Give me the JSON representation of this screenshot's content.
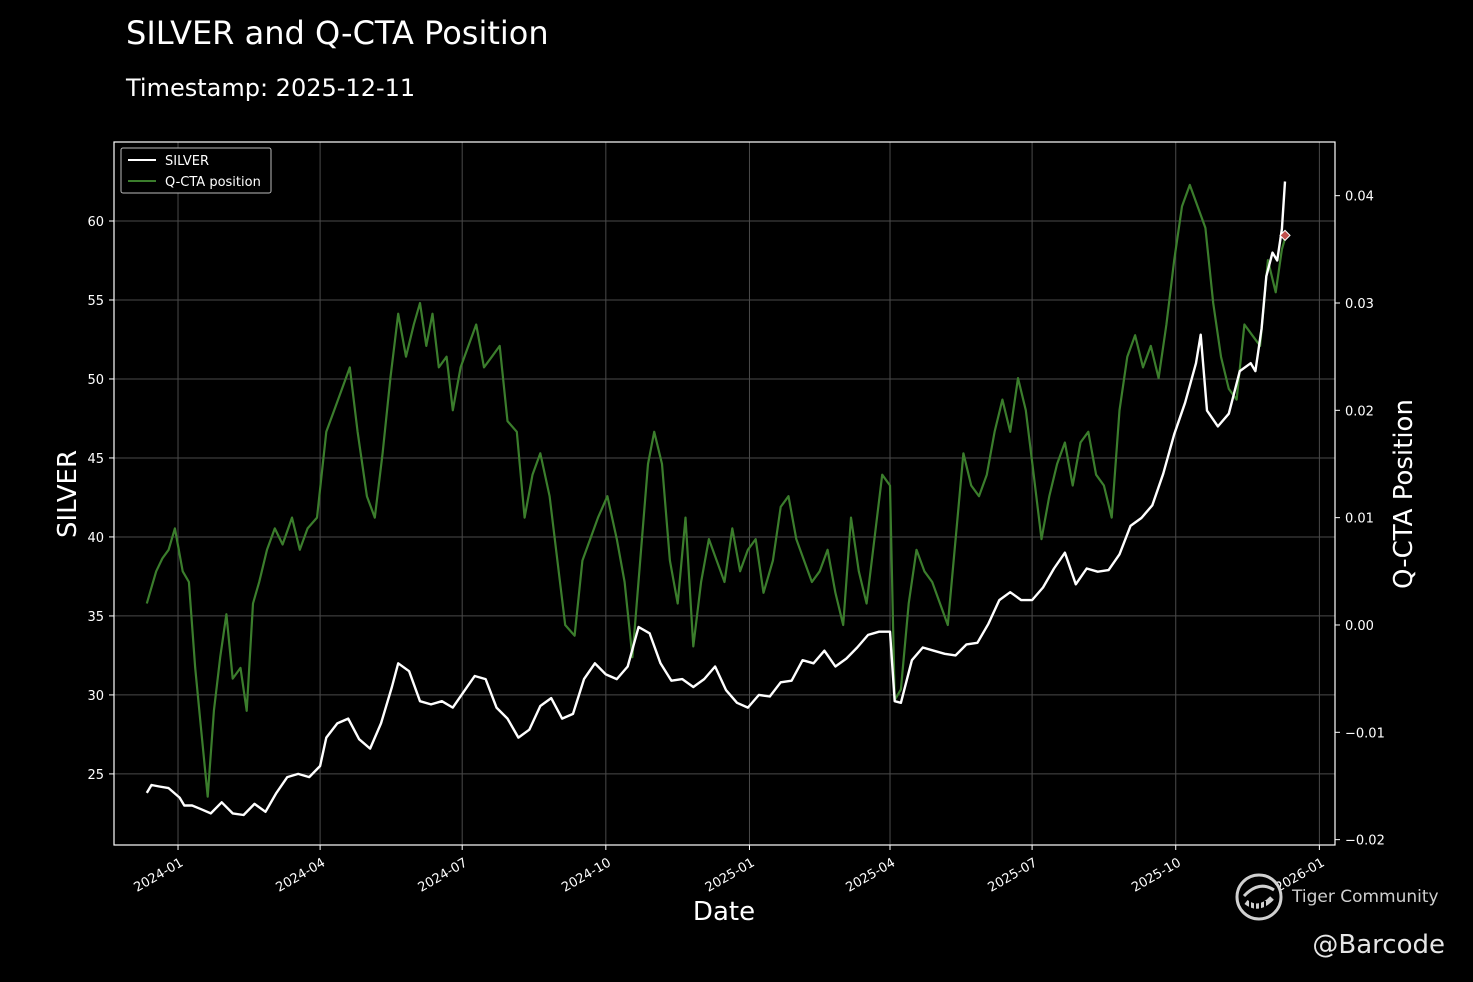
{
  "title": "SILVER and Q-CTA Position",
  "subtitle": "Timestamp: 2025-12-11",
  "watermark": {
    "logo_icon": "tiger-logo-icon",
    "brand": "Tiger Community",
    "handle": "@Barcode"
  },
  "colors": {
    "silver": "#ffffff",
    "cta": "#3b7d2c",
    "marker": "#c0504d",
    "background": "#000000",
    "grid": "#4a4a4a"
  },
  "chart_data": {
    "type": "line",
    "title": "SILVER and Q-CTA Position",
    "xlabel": "Date",
    "ylabel": "SILVER",
    "y2label": "Q-CTA Position",
    "xlim": [
      "2023-11-21",
      "2026-01-11"
    ],
    "ylim": [
      20.5,
      65.0
    ],
    "y2lim": [
      -0.0205,
      0.045
    ],
    "x_ticks": [
      "2024-01",
      "2024-04",
      "2024-07",
      "2024-10",
      "2025-01",
      "2025-04",
      "2025-07",
      "2025-10",
      "2026-01"
    ],
    "y_ticks": [
      25,
      30,
      35,
      40,
      45,
      50,
      55,
      60
    ],
    "y2_ticks": [
      -0.02,
      -0.01,
      0.0,
      0.01,
      0.02,
      0.03,
      0.04
    ],
    "y2_tick_labels": [
      "−0.02",
      "−0.01",
      "0.00",
      "0.01",
      "0.02",
      "0.03",
      "0.04"
    ],
    "grid": true,
    "legend": "top-left",
    "series": [
      {
        "name": "SILVER",
        "axis": "left",
        "points": [
          [
            "2023-12-12",
            23.8
          ],
          [
            "2023-12-15",
            24.3
          ],
          [
            "2023-12-20",
            24.2
          ],
          [
            "2023-12-26",
            24.1
          ],
          [
            "2024-01-02",
            23.5
          ],
          [
            "2024-01-05",
            23.0
          ],
          [
            "2024-01-10",
            23.0
          ],
          [
            "2024-01-15",
            22.8
          ],
          [
            "2024-01-22",
            22.5
          ],
          [
            "2024-01-29",
            23.2
          ],
          [
            "2024-02-05",
            22.5
          ],
          [
            "2024-02-12",
            22.4
          ],
          [
            "2024-02-19",
            23.1
          ],
          [
            "2024-02-26",
            22.6
          ],
          [
            "2024-03-04",
            23.8
          ],
          [
            "2024-03-11",
            24.8
          ],
          [
            "2024-03-18",
            25.0
          ],
          [
            "2024-03-25",
            24.8
          ],
          [
            "2024-04-01",
            25.5
          ],
          [
            "2024-04-05",
            27.3
          ],
          [
            "2024-04-12",
            28.2
          ],
          [
            "2024-04-19",
            28.5
          ],
          [
            "2024-04-26",
            27.2
          ],
          [
            "2024-05-03",
            26.6
          ],
          [
            "2024-05-10",
            28.2
          ],
          [
            "2024-05-17",
            30.5
          ],
          [
            "2024-05-21",
            32.0
          ],
          [
            "2024-05-28",
            31.5
          ],
          [
            "2024-06-04",
            29.6
          ],
          [
            "2024-06-11",
            29.4
          ],
          [
            "2024-06-18",
            29.6
          ],
          [
            "2024-06-25",
            29.2
          ],
          [
            "2024-07-02",
            30.2
          ],
          [
            "2024-07-09",
            31.2
          ],
          [
            "2024-07-16",
            31.0
          ],
          [
            "2024-07-23",
            29.2
          ],
          [
            "2024-07-30",
            28.5
          ],
          [
            "2024-08-06",
            27.3
          ],
          [
            "2024-08-13",
            27.8
          ],
          [
            "2024-08-20",
            29.3
          ],
          [
            "2024-08-27",
            29.8
          ],
          [
            "2024-09-03",
            28.5
          ],
          [
            "2024-09-10",
            28.8
          ],
          [
            "2024-09-17",
            31.0
          ],
          [
            "2024-09-24",
            32.0
          ],
          [
            "2024-10-01",
            31.3
          ],
          [
            "2024-10-08",
            31.0
          ],
          [
            "2024-10-15",
            31.8
          ],
          [
            "2024-10-22",
            34.3
          ],
          [
            "2024-10-29",
            33.9
          ],
          [
            "2024-11-05",
            32.0
          ],
          [
            "2024-11-12",
            30.9
          ],
          [
            "2024-11-19",
            31.0
          ],
          [
            "2024-11-26",
            30.5
          ],
          [
            "2024-12-03",
            31.0
          ],
          [
            "2024-12-10",
            31.8
          ],
          [
            "2024-12-17",
            30.3
          ],
          [
            "2024-12-24",
            29.5
          ],
          [
            "2024-12-31",
            29.2
          ],
          [
            "2025-01-07",
            30.0
          ],
          [
            "2025-01-14",
            29.9
          ],
          [
            "2025-01-21",
            30.8
          ],
          [
            "2025-01-28",
            30.9
          ],
          [
            "2025-02-04",
            32.2
          ],
          [
            "2025-02-11",
            32.0
          ],
          [
            "2025-02-18",
            32.8
          ],
          [
            "2025-02-25",
            31.8
          ],
          [
            "2025-03-04",
            32.3
          ],
          [
            "2025-03-11",
            33.0
          ],
          [
            "2025-03-18",
            33.8
          ],
          [
            "2025-03-25",
            34.0
          ],
          [
            "2025-04-01",
            34.0
          ],
          [
            "2025-04-04",
            29.6
          ],
          [
            "2025-04-08",
            29.5
          ],
          [
            "2025-04-15",
            32.2
          ],
          [
            "2025-04-22",
            33.0
          ],
          [
            "2025-04-29",
            32.8
          ],
          [
            "2025-05-06",
            32.6
          ],
          [
            "2025-05-13",
            32.5
          ],
          [
            "2025-05-20",
            33.2
          ],
          [
            "2025-05-27",
            33.3
          ],
          [
            "2025-06-03",
            34.5
          ],
          [
            "2025-06-10",
            36.0
          ],
          [
            "2025-06-17",
            36.5
          ],
          [
            "2025-06-24",
            36.0
          ],
          [
            "2025-07-01",
            36.0
          ],
          [
            "2025-07-08",
            36.8
          ],
          [
            "2025-07-15",
            38.0
          ],
          [
            "2025-07-22",
            39.0
          ],
          [
            "2025-07-29",
            37.0
          ],
          [
            "2025-08-05",
            38.0
          ],
          [
            "2025-08-12",
            37.8
          ],
          [
            "2025-08-19",
            37.9
          ],
          [
            "2025-08-26",
            38.9
          ],
          [
            "2025-09-02",
            40.7
          ],
          [
            "2025-09-09",
            41.2
          ],
          [
            "2025-09-16",
            42.0
          ],
          [
            "2025-09-23",
            44.0
          ],
          [
            "2025-09-30",
            46.5
          ],
          [
            "2025-10-07",
            48.5
          ],
          [
            "2025-10-14",
            51.0
          ],
          [
            "2025-10-17",
            52.8
          ],
          [
            "2025-10-21",
            48.0
          ],
          [
            "2025-10-28",
            47.0
          ],
          [
            "2025-11-04",
            47.8
          ],
          [
            "2025-11-11",
            50.5
          ],
          [
            "2025-11-18",
            51.0
          ],
          [
            "2025-11-21",
            50.5
          ],
          [
            "2025-11-25",
            53.2
          ],
          [
            "2025-11-28",
            56.5
          ],
          [
            "2025-12-02",
            58.0
          ],
          [
            "2025-12-05",
            57.5
          ],
          [
            "2025-12-08",
            59.5
          ],
          [
            "2025-12-10",
            62.5
          ]
        ]
      },
      {
        "name": "Q-CTA position",
        "axis": "right",
        "points": [
          [
            "2023-12-12",
            0.002
          ],
          [
            "2023-12-14",
            0.003
          ],
          [
            "2023-12-18",
            0.005
          ],
          [
            "2023-12-22",
            0.0062
          ],
          [
            "2023-12-26",
            0.007
          ],
          [
            "2023-12-30",
            0.009
          ],
          [
            "2024-01-04",
            0.005
          ],
          [
            "2024-01-08",
            0.004
          ],
          [
            "2024-01-12",
            -0.004
          ],
          [
            "2024-01-16",
            -0.01
          ],
          [
            "2024-01-20",
            -0.016
          ],
          [
            "2024-01-24",
            -0.008
          ],
          [
            "2024-01-28",
            -0.003
          ],
          [
            "2024-02-01",
            0.001
          ],
          [
            "2024-02-05",
            -0.005
          ],
          [
            "2024-02-10",
            -0.004
          ],
          [
            "2024-02-14",
            -0.008
          ],
          [
            "2024-02-18",
            0.002
          ],
          [
            "2024-02-22",
            0.004
          ],
          [
            "2024-02-27",
            0.007
          ],
          [
            "2024-03-03",
            0.009
          ],
          [
            "2024-03-08",
            0.0075
          ],
          [
            "2024-03-14",
            0.01
          ],
          [
            "2024-03-19",
            0.007
          ],
          [
            "2024-03-24",
            0.009
          ],
          [
            "2024-03-30",
            0.01
          ],
          [
            "2024-04-05",
            0.018
          ],
          [
            "2024-04-10",
            0.02
          ],
          [
            "2024-04-15",
            0.022
          ],
          [
            "2024-04-20",
            0.024
          ],
          [
            "2024-04-25",
            0.018
          ],
          [
            "2024-05-01",
            0.012
          ],
          [
            "2024-05-06",
            0.01
          ],
          [
            "2024-05-11",
            0.016
          ],
          [
            "2024-05-16",
            0.023
          ],
          [
            "2024-05-21",
            0.029
          ],
          [
            "2024-05-26",
            0.025
          ],
          [
            "2024-05-31",
            0.028
          ],
          [
            "2024-06-04",
            0.03
          ],
          [
            "2024-06-08",
            0.026
          ],
          [
            "2024-06-12",
            0.029
          ],
          [
            "2024-06-16",
            0.024
          ],
          [
            "2024-06-21",
            0.025
          ],
          [
            "2024-06-25",
            0.02
          ],
          [
            "2024-06-30",
            0.024
          ],
          [
            "2024-07-05",
            0.026
          ],
          [
            "2024-07-10",
            0.028
          ],
          [
            "2024-07-15",
            0.024
          ],
          [
            "2024-07-20",
            0.025
          ],
          [
            "2024-07-25",
            0.026
          ],
          [
            "2024-07-30",
            0.019
          ],
          [
            "2024-08-05",
            0.018
          ],
          [
            "2024-08-10",
            0.01
          ],
          [
            "2024-08-15",
            0.014
          ],
          [
            "2024-08-20",
            0.016
          ],
          [
            "2024-08-26",
            0.012
          ],
          [
            "2024-08-31",
            0.006
          ],
          [
            "2024-09-05",
            0.0
          ],
          [
            "2024-09-11",
            -0.001
          ],
          [
            "2024-09-16",
            0.006
          ],
          [
            "2024-09-21",
            0.008
          ],
          [
            "2024-09-26",
            0.01
          ],
          [
            "2024-10-02",
            0.012
          ],
          [
            "2024-10-08",
            0.008
          ],
          [
            "2024-10-13",
            0.004
          ],
          [
            "2024-10-18",
            -0.003
          ],
          [
            "2024-10-23",
            0.006
          ],
          [
            "2024-10-28",
            0.015
          ],
          [
            "2024-11-01",
            0.018
          ],
          [
            "2024-11-06",
            0.015
          ],
          [
            "2024-11-11",
            0.006
          ],
          [
            "2024-11-16",
            0.002
          ],
          [
            "2024-11-21",
            0.01
          ],
          [
            "2024-11-26",
            -0.002
          ],
          [
            "2024-12-01",
            0.004
          ],
          [
            "2024-12-06",
            0.008
          ],
          [
            "2024-12-11",
            0.006
          ],
          [
            "2024-12-16",
            0.004
          ],
          [
            "2024-12-21",
            0.009
          ],
          [
            "2024-12-26",
            0.005
          ],
          [
            "2024-12-31",
            0.007
          ],
          [
            "2025-01-05",
            0.008
          ],
          [
            "2025-01-10",
            0.003
          ],
          [
            "2025-01-16",
            0.006
          ],
          [
            "2025-01-21",
            0.011
          ],
          [
            "2025-01-26",
            0.012
          ],
          [
            "2025-01-31",
            0.008
          ],
          [
            "2025-02-05",
            0.006
          ],
          [
            "2025-02-10",
            0.004
          ],
          [
            "2025-02-15",
            0.005
          ],
          [
            "2025-02-20",
            0.007
          ],
          [
            "2025-02-25",
            0.003
          ],
          [
            "2025-03-02",
            0.0
          ],
          [
            "2025-03-07",
            0.01
          ],
          [
            "2025-03-12",
            0.005
          ],
          [
            "2025-03-17",
            0.002
          ],
          [
            "2025-03-22",
            0.008
          ],
          [
            "2025-03-27",
            0.014
          ],
          [
            "2025-04-01",
            0.013
          ],
          [
            "2025-04-04",
            -0.007
          ],
          [
            "2025-04-08",
            -0.006
          ],
          [
            "2025-04-13",
            0.002
          ],
          [
            "2025-04-18",
            0.007
          ],
          [
            "2025-04-23",
            0.005
          ],
          [
            "2025-04-28",
            0.004
          ],
          [
            "2025-05-03",
            0.002
          ],
          [
            "2025-05-08",
            0.0
          ],
          [
            "2025-05-13",
            0.008
          ],
          [
            "2025-05-18",
            0.016
          ],
          [
            "2025-05-23",
            0.013
          ],
          [
            "2025-05-28",
            0.012
          ],
          [
            "2025-06-02",
            0.014
          ],
          [
            "2025-06-07",
            0.018
          ],
          [
            "2025-06-12",
            0.021
          ],
          [
            "2025-06-17",
            0.018
          ],
          [
            "2025-06-22",
            0.023
          ],
          [
            "2025-06-27",
            0.02
          ],
          [
            "2025-07-02",
            0.014
          ],
          [
            "2025-07-07",
            0.008
          ],
          [
            "2025-07-12",
            0.012
          ],
          [
            "2025-07-17",
            0.015
          ],
          [
            "2025-07-22",
            0.017
          ],
          [
            "2025-07-27",
            0.013
          ],
          [
            "2025-08-01",
            0.017
          ],
          [
            "2025-08-06",
            0.018
          ],
          [
            "2025-08-11",
            0.014
          ],
          [
            "2025-08-16",
            0.013
          ],
          [
            "2025-08-21",
            0.01
          ],
          [
            "2025-08-26",
            0.02
          ],
          [
            "2025-08-31",
            0.025
          ],
          [
            "2025-09-05",
            0.027
          ],
          [
            "2025-09-10",
            0.024
          ],
          [
            "2025-09-15",
            0.026
          ],
          [
            "2025-09-20",
            0.023
          ],
          [
            "2025-09-25",
            0.028
          ],
          [
            "2025-09-30",
            0.034
          ],
          [
            "2025-10-05",
            0.039
          ],
          [
            "2025-10-10",
            0.041
          ],
          [
            "2025-10-15",
            0.039
          ],
          [
            "2025-10-20",
            0.037
          ],
          [
            "2025-10-25",
            0.03
          ],
          [
            "2025-10-30",
            0.025
          ],
          [
            "2025-11-04",
            0.022
          ],
          [
            "2025-11-09",
            0.021
          ],
          [
            "2025-11-14",
            0.028
          ],
          [
            "2025-11-19",
            0.027
          ],
          [
            "2025-11-24",
            0.026
          ],
          [
            "2025-11-29",
            0.034
          ],
          [
            "2025-12-04",
            0.031
          ],
          [
            "2025-12-08",
            0.035
          ],
          [
            "2025-12-10",
            0.036
          ]
        ]
      }
    ],
    "marker": {
      "date": "2025-12-10",
      "value": 0.0363,
      "axis": "right"
    }
  }
}
